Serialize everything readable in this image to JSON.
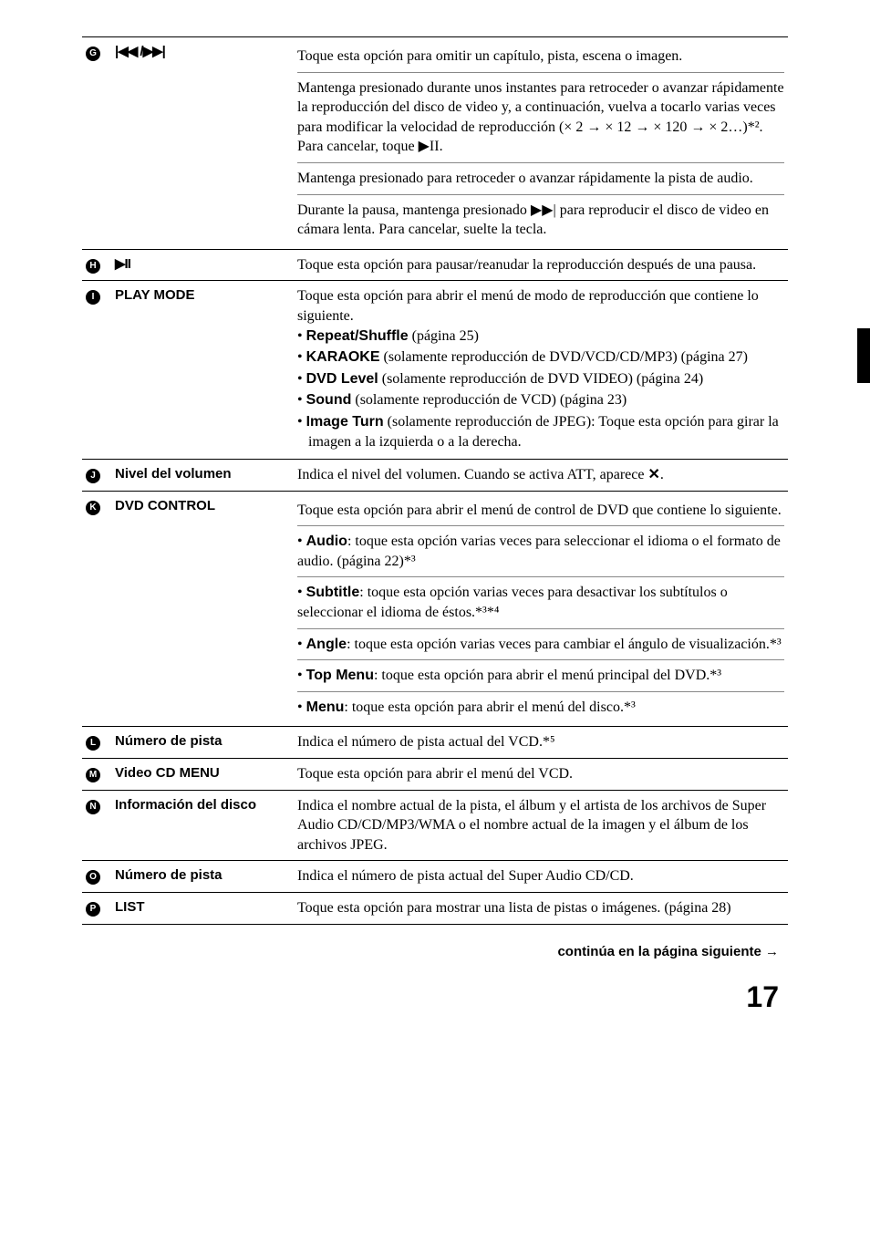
{
  "rows": {
    "g": {
      "marker": "G",
      "label_icon": "|◀◀ /▶▶|",
      "blocks": [
        "Toque esta opción para omitir un capítulo, pista, escena o imagen.",
        "Mantenga presionado durante unos instantes para retroceder o avanzar rápidamente la reproducción del disco de video y, a continuación, vuelva a tocarlo varias veces para modificar la velocidad de reproducción (× 2 → × 12 → × 120 → × 2…)*². Para cancelar, toque ▶II.",
        "Mantenga presionado para retroceder o avanzar rápidamente la pista de audio.",
        "Durante la pausa, mantenga presionado ▶▶| para reproducir el disco de video en cámara lenta. Para cancelar, suelte la tecla."
      ]
    },
    "h": {
      "marker": "H",
      "label_icon": "▶II",
      "desc": "Toque esta opción para pausar/reanudar la reproducción después de una pausa."
    },
    "i": {
      "marker": "I",
      "label": "PLAY MODE",
      "intro": "Toque esta opción para abrir el menú de modo de reproducción que contiene lo siguiente.",
      "bullets": [
        {
          "b": "Repeat/Shuffle",
          "rest": " (página 25)"
        },
        {
          "b": "KARAOKE",
          "rest": " (solamente reproducción de DVD/VCD/CD/MP3) (página 27)"
        },
        {
          "b": "DVD Level",
          "rest": " (solamente reproducción de DVD VIDEO) (página 24)"
        },
        {
          "b": "Sound",
          "rest": " (solamente reproducción de VCD) (página 23)"
        },
        {
          "b": "Image Turn",
          "rest": " (solamente reproducción de JPEG): Toque esta opción para girar la imagen a la izquierda o a la derecha."
        }
      ]
    },
    "j": {
      "marker": "J",
      "label": "Nivel del volumen",
      "desc_pre": "Indica el nivel del volumen. Cuando se activa ATT, aparece ",
      "desc_icon": "✕",
      "desc_post": "."
    },
    "k": {
      "marker": "K",
      "label": "DVD CONTROL",
      "intro": "Toque esta opción para abrir el menú de control de DVD que contiene lo siguiente.",
      "bullets": [
        {
          "b": "Audio",
          "rest": ": toque esta opción varias veces para seleccionar el idioma o el formato de audio. (página 22)*³"
        },
        {
          "b": "Subtitle",
          "rest": ": toque esta opción varias veces para desactivar los subtítulos o seleccionar el idioma de éstos.*³*⁴"
        },
        {
          "b": "Angle",
          "rest": ": toque esta opción varias veces para cambiar el ángulo de visualización.*³"
        },
        {
          "b": "Top Menu",
          "rest": ": toque esta opción para abrir el menú principal del DVD.*³"
        },
        {
          "b": "Menu",
          "rest": ": toque esta opción para abrir el menú del disco.*³"
        }
      ]
    },
    "l": {
      "marker": "L",
      "label": "Número de pista",
      "desc": "Indica el número de pista actual del VCD.*⁵"
    },
    "m": {
      "marker": "M",
      "label": "Video CD MENU",
      "desc": "Toque esta opción para abrir el menú del VCD."
    },
    "n": {
      "marker": "N",
      "label": "Información del disco",
      "desc": "Indica el nombre actual de la pista, el álbum y el artista de los archivos de Super Audio CD/CD/MP3/WMA o el nombre actual de la imagen y el álbum de los archivos JPEG."
    },
    "o": {
      "marker": "O",
      "label": "Número de pista",
      "desc": "Indica el número de pista actual del Super Audio CD/CD."
    },
    "p": {
      "marker": "P",
      "label": "LIST",
      "desc": "Toque esta opción para mostrar una lista de pistas o imágenes. (página 28)"
    }
  },
  "footer": "continúa en la página siguiente →",
  "pagenum": "17"
}
